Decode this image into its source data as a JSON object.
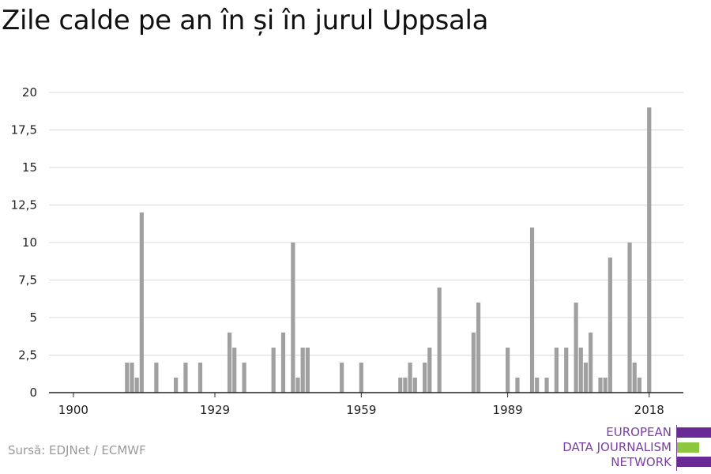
{
  "title": "Zile calde pe an în și în jurul Uppsala",
  "source": "Sursă: EDJNet / ECMWF",
  "logo": {
    "lines": [
      "EUROPEAN",
      "DATA JOURNALISM",
      "NETWORK"
    ],
    "colors": {
      "purple": "#6a2a96",
      "green": "#8dc63f",
      "text": "#7b3fa0"
    }
  },
  "chart_data": {
    "type": "bar",
    "title": "Zile calde pe an în și în jurul Uppsala",
    "xlabel": "",
    "ylabel": "",
    "bar_color": "#a0a0a0",
    "grid": true,
    "xlim": [
      1895,
      2025
    ],
    "ylim": [
      0,
      20
    ],
    "y_ticks": [
      {
        "value": 0,
        "label": "0"
      },
      {
        "value": 2.5,
        "label": "2,5"
      },
      {
        "value": 5,
        "label": "5"
      },
      {
        "value": 7.5,
        "label": "7,5"
      },
      {
        "value": 10,
        "label": "10"
      },
      {
        "value": 12.5,
        "label": "12,5"
      },
      {
        "value": 15,
        "label": "15"
      },
      {
        "value": 17.5,
        "label": "17,5"
      },
      {
        "value": 20,
        "label": "20"
      }
    ],
    "x_ticks": [
      {
        "value": 1900,
        "label": "1900"
      },
      {
        "value": 1929,
        "label": "1929"
      },
      {
        "value": 1959,
        "label": "1959"
      },
      {
        "value": 1989,
        "label": "1989"
      },
      {
        "value": 2018,
        "label": "2018"
      }
    ],
    "x": [
      1911,
      1912,
      1913,
      1914,
      1917,
      1921,
      1923,
      1926,
      1932,
      1933,
      1935,
      1941,
      1943,
      1945,
      1946,
      1947,
      1948,
      1955,
      1959,
      1967,
      1968,
      1969,
      1970,
      1972,
      1973,
      1975,
      1982,
      1983,
      1989,
      1991,
      1994,
      1995,
      1997,
      1999,
      2001,
      2003,
      2004,
      2005,
      2006,
      2008,
      2009,
      2010,
      2014,
      2015,
      2016,
      2018
    ],
    "values": [
      2,
      2,
      1,
      12,
      2,
      1,
      2,
      2,
      4,
      3,
      2,
      3,
      4,
      10,
      1,
      3,
      3,
      2,
      2,
      1,
      1,
      2,
      1,
      2,
      3,
      7,
      4,
      6,
      3,
      1,
      11,
      1,
      1,
      3,
      3,
      6,
      3,
      2,
      4,
      1,
      1,
      9,
      10,
      2,
      1,
      19
    ]
  }
}
